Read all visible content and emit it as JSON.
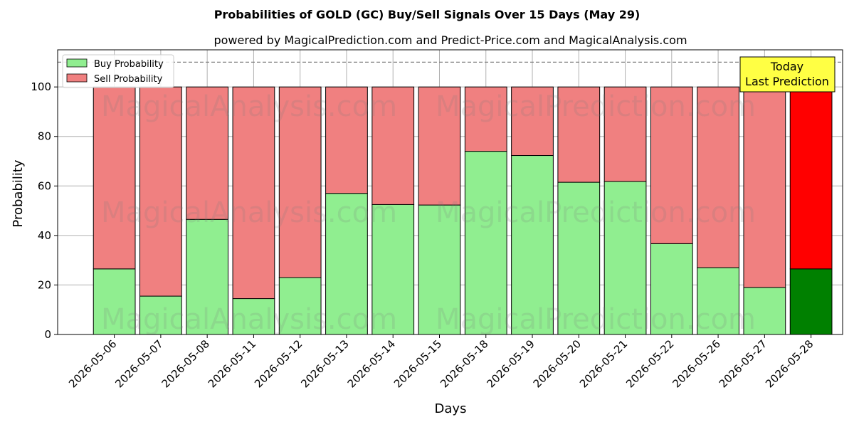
{
  "chart_data": {
    "type": "bar",
    "stacked": true,
    "title": "Probabilities of GOLD (GC) Buy/Sell Signals Over 15 Days (May 29)",
    "subtitle": "powered by MagicalPrediction.com and Predict-Price.com and MagicalAnalysis.com",
    "xlabel": "Days",
    "ylabel": "Probability",
    "ylim": [
      0,
      115
    ],
    "yticks": [
      0,
      20,
      40,
      60,
      80,
      100
    ],
    "grid": true,
    "legend_position": "top-left",
    "reference_line": 110,
    "categories": [
      "2026-05-06",
      "2026-05-07",
      "2026-05-08",
      "2026-05-11",
      "2026-05-12",
      "2026-05-13",
      "2026-05-14",
      "2026-05-15",
      "2026-05-18",
      "2026-05-19",
      "2026-05-20",
      "2026-05-21",
      "2026-05-22",
      "2026-05-26",
      "2026-05-27",
      "2026-05-28"
    ],
    "series": [
      {
        "name": "Buy Probability",
        "color": "#90ee90",
        "highlight_color": "#008000",
        "values": [
          26.5,
          15.5,
          46.5,
          14.5,
          23,
          57,
          52.5,
          52.3,
          74,
          72.3,
          61.5,
          61.8,
          36.7,
          27,
          19,
          26.5
        ]
      },
      {
        "name": "Sell Probability",
        "color": "#f08080",
        "highlight_color": "#ff0000",
        "values": [
          73.5,
          84.5,
          53.5,
          85.5,
          77,
          43,
          47.5,
          47.7,
          26,
          27.7,
          38.5,
          38.2,
          63.3,
          73,
          81,
          73.5
        ]
      }
    ],
    "annotation": {
      "lines": [
        "Today",
        "Last Prediction"
      ],
      "color": "#ffff44"
    },
    "watermarks": [
      "MagicalAnalysis.com",
      "MagicalPrediction.com"
    ]
  }
}
